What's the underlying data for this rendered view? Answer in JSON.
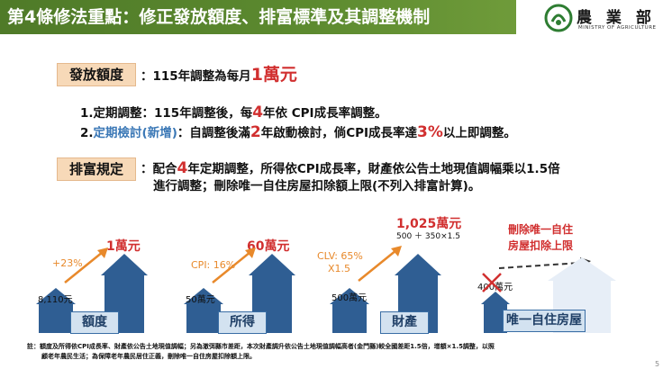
{
  "header": {
    "title": "第4條修法重點：修正發放額度、排富標準及其調整機制"
  },
  "logo": {
    "name": "農 業 部",
    "subtitle": "MINISTRY OF AGRICULTURE"
  },
  "payout": {
    "label": "發放額度",
    "text_prefix": "：115年調整為每月",
    "amount": "1萬元",
    "line1_a": "1.定期調整：115年調整後，每",
    "line1_num": "4",
    "line1_b": "年依 CPI成長率調整。",
    "line2_num": "2.",
    "line2_term": "定期檢討(新增)",
    "line2_a": "：自調整後滿",
    "line2_num2": "2",
    "line2_b": "年啟動檢討，倘CPI成長率達",
    "line2_pct": "3%",
    "line2_c": "以上即調整。"
  },
  "wealth": {
    "label": "排富規定",
    "line1_a": "：配合",
    "line1_num": "4",
    "line1_b": "年定期調整，所得依CPI成長率，財產依公告土地現值調幅乘以1.5倍",
    "line2": "進行調整；刪除唯一自住房屋扣除額上限(不列入排富計算)。"
  },
  "figures": [
    {
      "caption": "額度",
      "before": "8,110元",
      "after": "1萬元",
      "change": "+23%"
    },
    {
      "caption": "所得",
      "before": "50萬元",
      "after": "60萬元",
      "change": "CPI: 16%"
    },
    {
      "caption": "財產",
      "before": "500萬元",
      "after": "1,025萬元",
      "formula": "500 ＋ 350×1.5",
      "change_a": "CLV: 65%",
      "change_b": "X1.5"
    },
    {
      "caption": "唯一自住房屋",
      "before": "400萬元",
      "after_line1": "刪除唯一自住",
      "after_line2": "房屋扣除上限"
    }
  ],
  "footnote": {
    "line1": "註：額度及所得依CPI成長率、財產依公告土地現值調幅；另為澈弭縣市差距，本次財產調升依公告土地現值調幅高者(金門縣)較全國差距1.5倍，增額×1.5調整，以照",
    "line2": "顧老年農民生活；為保障老年農民居住正義，刪除唯一自住房屋扣除額上限。"
  },
  "page_number": "5",
  "colors": {
    "title_bar": "#5c8a2f",
    "label_bg": "#f7d9b8",
    "accent_red": "#d12f2f",
    "accent_blue": "#3b78b6",
    "arrow_orange": "#e8892b",
    "bar_blue": "#2f5e93"
  },
  "icons": [
    "logo-emblem-icon",
    "up-arrow-icon",
    "cross-icon",
    "dashed-arrow-icon"
  ]
}
